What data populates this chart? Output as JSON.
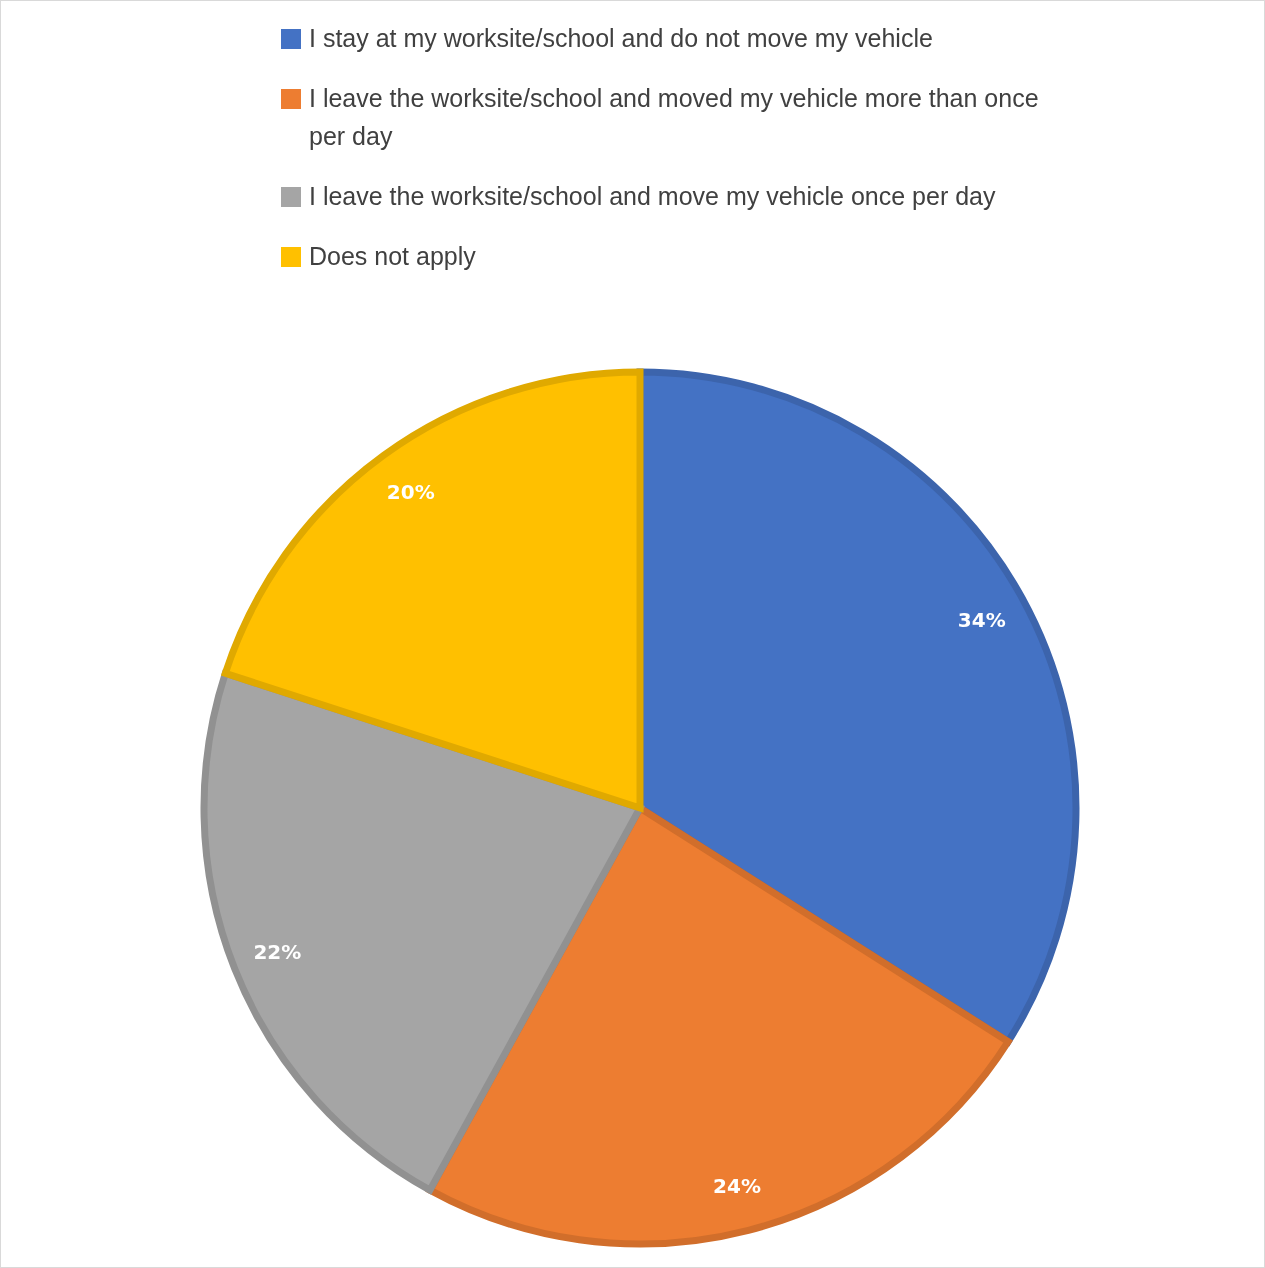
{
  "chart_data": {
    "type": "pie",
    "categories": [
      "I stay at my worksite/school and do not move my vehicle",
      "I leave the worksite/school and moved my vehicle more than once per day",
      "I leave the worksite/school and move my vehicle once per day",
      "Does not apply"
    ],
    "values": [
      34,
      24,
      22,
      20
    ],
    "value_labels": [
      "34%",
      "24%",
      "22%",
      "20%"
    ],
    "colors": [
      "#4472c4",
      "#ed7d31",
      "#a5a5a5",
      "#ffc000"
    ],
    "legend": "top"
  }
}
